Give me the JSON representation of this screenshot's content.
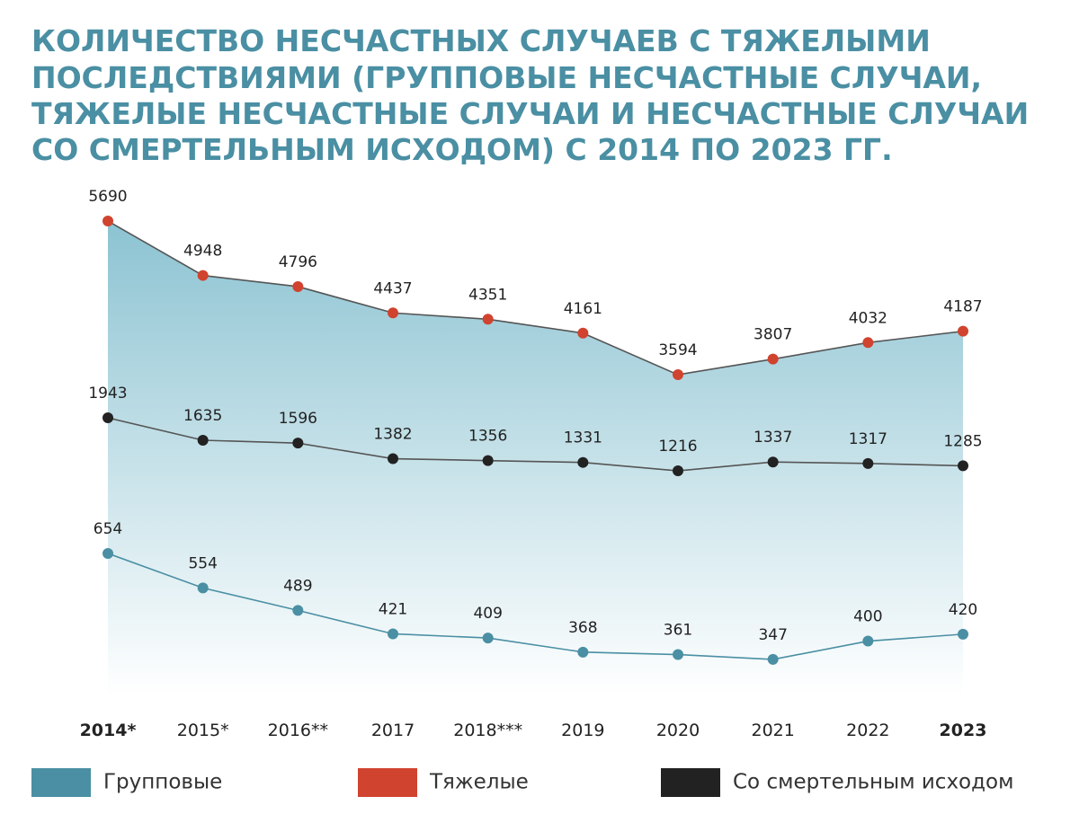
{
  "chart_data": {
    "type": "line",
    "title": [
      "КОЛИЧЕСТВО НЕСЧАСТНЫХ СЛУЧАЕВ С ТЯЖЕЛЫМИ",
      "ПОСЛЕДСТВИЯМИ (ГРУППОВЫЕ НЕСЧАСТНЫЕ СЛУЧАИ,",
      "ТЯЖЕЛЫЕ НЕСЧАСТНЫЕ СЛУЧАИ И НЕСЧАСТНЫЕ СЛУЧАИ",
      "СО СМЕРТЕЛЬНЫМ ИСХОДОМ) С 2014 ПО 2023 ГГ."
    ],
    "categories": [
      "2014*",
      "2015*",
      "2016**",
      "2017",
      "2018***",
      "2019",
      "2020",
      "2021",
      "2022",
      "2023"
    ],
    "series": [
      {
        "name": "Групповые",
        "color": "#4a8fa3",
        "ylim": [
          227,
          1737
        ],
        "values": [
          654,
          554,
          489,
          421,
          409,
          368,
          361,
          347,
          400,
          420
        ]
      },
      {
        "name": "Тяжелые",
        "color": "#d0432f",
        "ylim": [
          -854,
          6254
        ],
        "area": true,
        "values": [
          5690,
          4948,
          4796,
          4437,
          4351,
          4161,
          3594,
          3807,
          4032,
          4187
        ]
      },
      {
        "name": "Со смертельным исходом",
        "color": "#222222",
        "ylim": [
          -1936,
          5206
        ],
        "values": [
          1943,
          1635,
          1596,
          1382,
          1356,
          1331,
          1216,
          1337,
          1317,
          1285
        ]
      }
    ]
  }
}
